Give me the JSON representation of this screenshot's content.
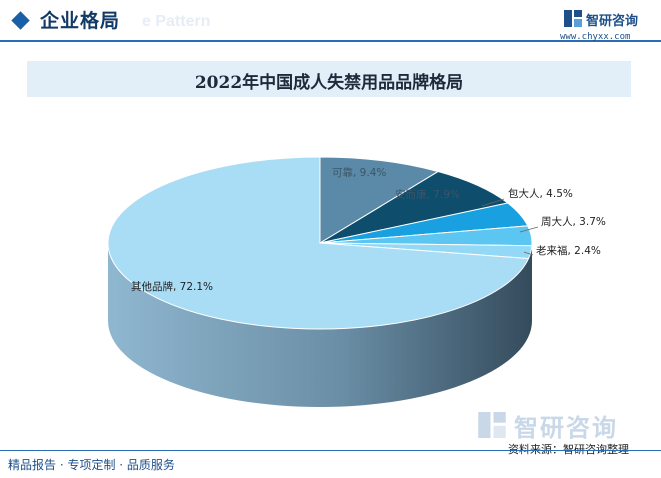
{
  "header": {
    "title": "企业格局",
    "watermark": "e Pattern"
  },
  "brand": {
    "name": "智研咨询",
    "url": "www.chyxx.com",
    "icon": "chyxx-logo-icon"
  },
  "chart_data": {
    "type": "pie",
    "title": "2022年中国成人失禁用品品牌格局",
    "slices": [
      {
        "label": "可靠, 9.4%",
        "value": 9.4,
        "color": "#5b8aa8"
      },
      {
        "label": "安而康, 7.9%",
        "value": 7.9,
        "color": "#0f4d6d"
      },
      {
        "label": "包大人, 4.5%",
        "value": 4.5,
        "color": "#19a0e0"
      },
      {
        "label": "周大人, 3.7%",
        "value": 3.7,
        "color": "#5cc6f2"
      },
      {
        "label": "老来福, 2.4%",
        "value": 2.4,
        "color": "#93d8f5"
      },
      {
        "label": "其他品牌, 72.1%",
        "value": 72.1,
        "color": "#a9dcf5"
      }
    ],
    "legend": "none"
  },
  "footer": {
    "tagline": "精品报告 · 专项定制 · 品质服务",
    "source": "资料来源：智研咨询整理"
  }
}
